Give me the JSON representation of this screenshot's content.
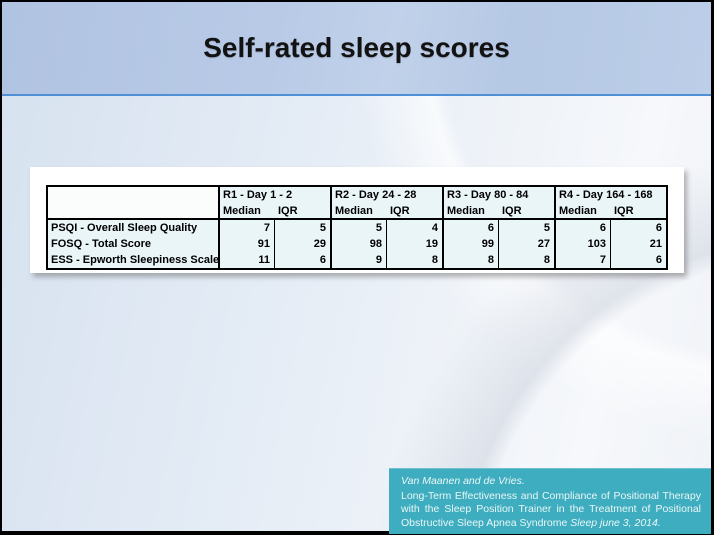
{
  "slide": {
    "title": "Self-rated sleep scores"
  },
  "table": {
    "group_headers": [
      {
        "label": "R1 - Day 1 - 2",
        "median": "Median",
        "iqr": "IQR"
      },
      {
        "label": "R2 - Day 24 - 28",
        "median": "Median",
        "iqr": "IQR"
      },
      {
        "label": "R3 - Day 80 - 84",
        "median": "Median",
        "iqr": "IQR"
      },
      {
        "label": "R4 - Day 164 - 168",
        "median": "Median",
        "iqr": "IQR"
      }
    ],
    "rows": [
      {
        "label": "PSQI - Overall Sleep Quality",
        "values": [
          "7",
          "5",
          "5",
          "4",
          "6",
          "5",
          "6",
          "6"
        ]
      },
      {
        "label": "FOSQ - Total Score",
        "values": [
          "91",
          "29",
          "98",
          "19",
          "99",
          "27",
          "103",
          "21"
        ]
      },
      {
        "label": "ESS - Epworth Sleepiness Scale",
        "values": [
          "11",
          "6",
          "9",
          "8",
          "8",
          "8",
          "7",
          "6"
        ]
      }
    ]
  },
  "citation": {
    "authors": "Van Maanen and de Vries.",
    "text": "Long-Term Effectiveness and Compliance of Positional Therapy with the Sleep Position Trainer in the Treatment of Positional Obstructive Sleep Apnea Syndrome ",
    "source": "Sleep june 3, 2014."
  },
  "colors": {
    "header_band": "#b8cae6",
    "divider_line": "#4e8fd5",
    "table_cell_bg": "#eaf5f8",
    "citation_bg": "#3fadc0",
    "frame": "#000000"
  }
}
